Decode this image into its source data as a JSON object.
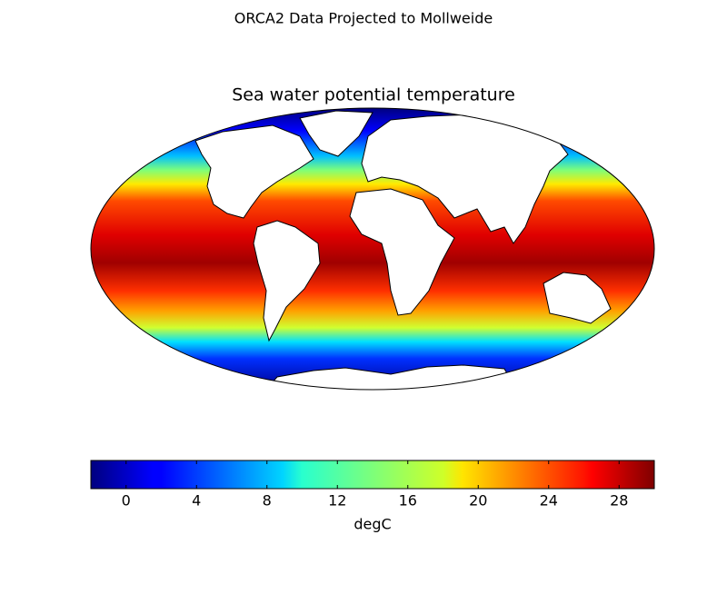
{
  "title": "ORCA2 Data Projected to Mollweide",
  "map": {
    "title": "Sea water potential temperature"
  },
  "colorbar": {
    "clim": [
      -2,
      30
    ],
    "ticks": [
      0,
      4,
      8,
      12,
      16,
      20,
      24,
      28
    ],
    "label": "degC"
  }
}
